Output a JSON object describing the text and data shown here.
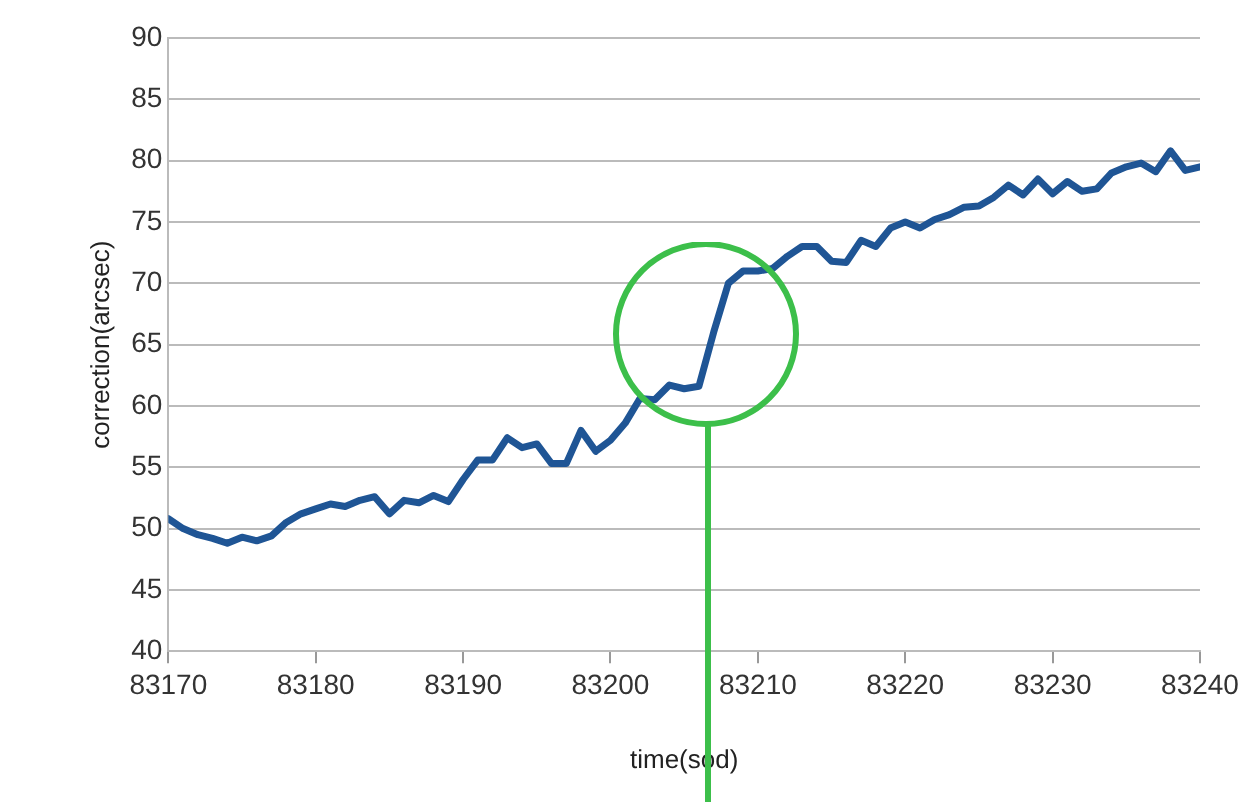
{
  "chart_data": {
    "type": "line",
    "xlabel": "time(sod)",
    "ylabel": "correction(arcsec)",
    "x": [
      83170,
      83171,
      83172,
      83173,
      83174,
      83175,
      83176,
      83177,
      83178,
      83179,
      83180,
      83181,
      83182,
      83183,
      83184,
      83185,
      83186,
      83187,
      83188,
      83189,
      83190,
      83191,
      83192,
      83193,
      83194,
      83195,
      83196,
      83197,
      83198,
      83199,
      83200,
      83201,
      83202,
      83203,
      83204,
      83205,
      83206,
      83207,
      83208,
      83209,
      83210,
      83211,
      83212,
      83213,
      83214,
      83215,
      83216,
      83217,
      83218,
      83219,
      83220,
      83221,
      83222,
      83223,
      83224,
      83225,
      83226,
      83227,
      83228,
      83229,
      83230,
      83231,
      83232,
      83233,
      83234,
      83235,
      83236,
      83237,
      83238,
      83239,
      83240
    ],
    "series": [
      {
        "color": "#1f5595",
        "values": [
          50.8,
          50,
          49.5,
          49.2,
          48.8,
          49.3,
          49,
          49.4,
          50.5,
          51.2,
          51.6,
          52,
          51.8,
          52.3,
          52.6,
          51.2,
          52.3,
          52.1,
          52.7,
          52.2,
          54,
          55.6,
          55.6,
          57.4,
          56.6,
          56.9,
          55.3,
          55.3,
          58,
          56.3,
          57.2,
          58.6,
          60.6,
          60.5,
          61.7,
          61.4,
          61.6,
          66,
          70,
          71,
          71,
          71.2,
          72.2,
          73,
          73,
          71.8,
          71.7,
          73.5,
          73,
          74.5,
          75,
          74.5,
          75.2,
          75.6,
          76.2,
          76.3,
          77,
          78,
          77.2,
          78.5,
          77.3,
          78.3,
          77.5,
          77.7,
          79,
          79.5,
          79.8,
          79.1,
          80.8,
          79.2,
          79.5
        ]
      }
    ],
    "xlim": [
      83170,
      83240
    ],
    "xticks": [
      83170,
      83180,
      83190,
      83200,
      83210,
      83220,
      83230,
      83240
    ],
    "ylim": [
      40,
      90
    ],
    "yticks": [
      40,
      45,
      50,
      55,
      60,
      65,
      70,
      75,
      80,
      85,
      90
    ],
    "grid": "y",
    "legend": false,
    "marker": "none",
    "line_style": "solid"
  }
}
